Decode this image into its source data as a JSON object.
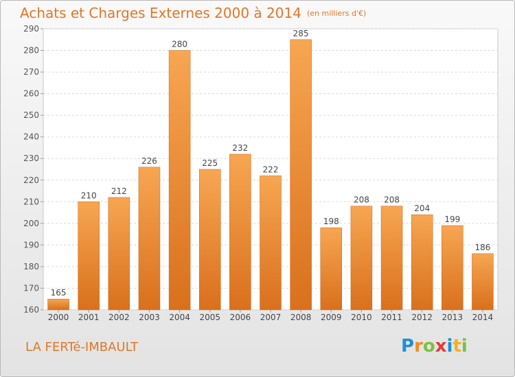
{
  "header": {
    "title": "Achats et Charges Externes 2000 à 2014",
    "unit": "(en milliers d'€)"
  },
  "footer": {
    "place": "LA FERTé-IMBAULT",
    "brand_letters": [
      "P",
      "r",
      "o",
      "x",
      "i",
      "t",
      "i"
    ],
    "brand_colors": [
      "#1e8fd6",
      "#f28c1e",
      "#7bc043",
      "#e23a3a",
      "#1e8fd6",
      "#f2b21e",
      "#7bc043"
    ]
  },
  "colors": {
    "bar_top": "#f7a652",
    "bar_bottom": "#d9701d",
    "text_orange": "#e07726",
    "grid": "#d8d8d8"
  },
  "chart_data": {
    "type": "bar",
    "categories": [
      "2000",
      "2001",
      "2002",
      "2003",
      "2004",
      "2005",
      "2006",
      "2007",
      "2008",
      "2009",
      "2010",
      "2011",
      "2012",
      "2013",
      "2014"
    ],
    "values": [
      165,
      210,
      212,
      226,
      280,
      225,
      232,
      222,
      285,
      198,
      208,
      208,
      204,
      199,
      186
    ],
    "yticks": [
      160,
      170,
      180,
      190,
      200,
      210,
      220,
      230,
      240,
      250,
      260,
      270,
      280,
      290
    ],
    "ylim": [
      160,
      290
    ],
    "grid": true,
    "legend": "none"
  }
}
